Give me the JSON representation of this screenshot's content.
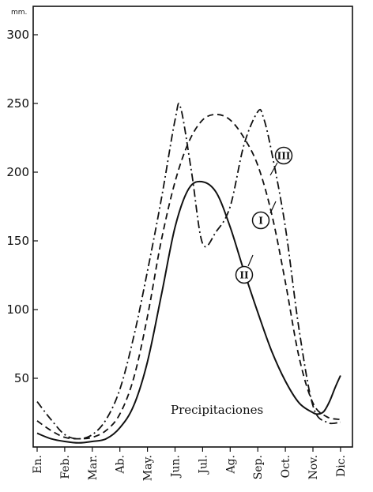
{
  "chart_data": {
    "type": "line",
    "y_unit": "mm.",
    "annotation": "Precipitaciones",
    "categories": [
      "En.",
      "Feb.",
      "Mar.",
      "Ab.",
      "May.",
      "Jun.",
      "Jul.",
      "Ag.",
      "Sep.",
      "Oct.",
      "Nov.",
      "Dic."
    ],
    "yticks": [
      50,
      100,
      150,
      200,
      250,
      300
    ],
    "ylim": [
      0,
      310
    ],
    "xlim": [
      0,
      11
    ],
    "grid": false,
    "legend": "none",
    "series": [
      {
        "name": "I",
        "dash": "solid",
        "x": [
          0,
          0.5,
          1,
          1.5,
          2,
          2.5,
          3,
          3.5,
          4,
          4.5,
          5,
          5.5,
          6,
          6.5,
          7,
          7.5,
          8,
          8.5,
          9,
          9.5,
          10,
          10.2,
          10.4,
          10.6,
          10.8,
          11
        ],
        "y": [
          10,
          6,
          4,
          3,
          4,
          6,
          14,
          30,
          62,
          110,
          160,
          188,
          193,
          185,
          160,
          128,
          98,
          70,
          48,
          32,
          25,
          24,
          26,
          33,
          43,
          52
        ]
      },
      {
        "name": "II",
        "dash": "dashed",
        "x": [
          0,
          0.5,
          1,
          1.5,
          2,
          2.5,
          3,
          3.5,
          4,
          4.5,
          5,
          5.5,
          6,
          6.5,
          7,
          7.5,
          8,
          8.5,
          9,
          9.5,
          10,
          10.5,
          11
        ],
        "y": [
          19,
          12,
          7,
          6,
          7,
          12,
          24,
          50,
          95,
          150,
          193,
          222,
          238,
          242,
          238,
          225,
          205,
          170,
          120,
          65,
          32,
          22,
          20
        ]
      },
      {
        "name": "III",
        "dash": "dashdot",
        "x": [
          0,
          0.5,
          1,
          1.5,
          2,
          2.5,
          3,
          3.5,
          4,
          4.5,
          5,
          5.2,
          5.6,
          6,
          6.5,
          7,
          7.5,
          8,
          8.2,
          8.5,
          9,
          9.5,
          10,
          10.5,
          11
        ],
        "y": [
          33,
          20,
          9,
          6,
          9,
          20,
          42,
          80,
          128,
          180,
          238,
          247,
          200,
          148,
          157,
          175,
          220,
          244,
          240,
          215,
          160,
          85,
          30,
          18,
          18
        ]
      }
    ]
  }
}
